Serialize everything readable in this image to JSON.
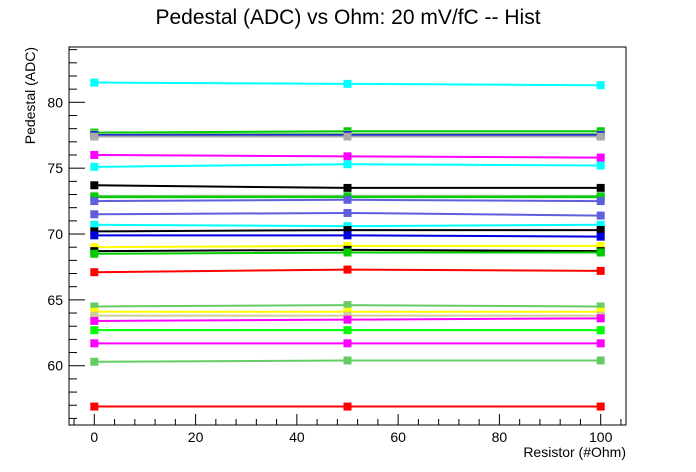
{
  "chart_data": {
    "type": "line",
    "title": "Pedestal (ADC) vs Ohm: 20 mV/fC -- Hist",
    "xlabel": "Resistor (#Ohm)",
    "ylabel": "Pedestal (ADC)",
    "xlim": [
      -5,
      105
    ],
    "ylim": [
      55.5,
      84.2
    ],
    "x": [
      0,
      50,
      100
    ],
    "x_ticks": [
      0,
      20,
      40,
      60,
      80,
      100
    ],
    "y_ticks": [
      60,
      65,
      70,
      75,
      80
    ],
    "grid": false,
    "legend": "none",
    "series": [
      {
        "color": "#00ffff",
        "values": [
          81.5,
          81.4,
          81.3
        ]
      },
      {
        "color": "#00cc00",
        "values": [
          77.7,
          77.8,
          77.8
        ]
      },
      {
        "color": "#66cc66",
        "values": [
          77.6,
          77.6,
          77.6
        ]
      },
      {
        "color": "#0000dd",
        "values": [
          77.5,
          77.5,
          77.5
        ]
      },
      {
        "color": "#aaaaaa",
        "values": [
          77.4,
          77.4,
          77.4
        ]
      },
      {
        "color": "#ff00ff",
        "values": [
          76.0,
          75.9,
          75.8
        ]
      },
      {
        "color": "#00ffff",
        "values": [
          75.1,
          75.3,
          75.2
        ]
      },
      {
        "color": "#000000",
        "values": [
          73.7,
          73.5,
          73.5
        ]
      },
      {
        "color": "#66cc66",
        "values": [
          72.9,
          72.9,
          72.9
        ]
      },
      {
        "color": "#00cc00",
        "values": [
          72.8,
          72.8,
          72.8
        ]
      },
      {
        "color": "#5f5fdd",
        "values": [
          72.5,
          72.6,
          72.5
        ]
      },
      {
        "color": "#5f5fdd",
        "values": [
          71.5,
          71.6,
          71.4
        ]
      },
      {
        "color": "#00ffff",
        "values": [
          70.7,
          70.6,
          70.7
        ]
      },
      {
        "color": "#000000",
        "values": [
          70.2,
          70.3,
          70.3
        ]
      },
      {
        "color": "#0000dd",
        "values": [
          69.9,
          69.9,
          69.8
        ]
      },
      {
        "color": "#ffff00",
        "values": [
          69.0,
          69.1,
          69.1
        ]
      },
      {
        "color": "#000000",
        "values": [
          68.7,
          68.8,
          68.7
        ]
      },
      {
        "color": "#00cc00",
        "values": [
          68.5,
          68.6,
          68.6
        ]
      },
      {
        "color": "#ff0000",
        "values": [
          67.1,
          67.3,
          67.2
        ]
      },
      {
        "color": "#66cc66",
        "values": [
          64.5,
          64.6,
          64.5
        ]
      },
      {
        "color": "#ffff00",
        "values": [
          64.1,
          64.1,
          64.1
        ]
      },
      {
        "color": "#cccc99",
        "values": [
          63.8,
          63.8,
          63.8
        ]
      },
      {
        "color": "#ff00ff",
        "values": [
          63.4,
          63.5,
          63.6
        ]
      },
      {
        "color": "#00ff00",
        "values": [
          62.7,
          62.7,
          62.7
        ]
      },
      {
        "color": "#ff00ff",
        "values": [
          61.7,
          61.7,
          61.7
        ]
      },
      {
        "color": "#66cc66",
        "values": [
          60.3,
          60.4,
          60.4
        ]
      },
      {
        "color": "#ff0000",
        "values": [
          56.9,
          56.9,
          56.9
        ]
      }
    ]
  }
}
